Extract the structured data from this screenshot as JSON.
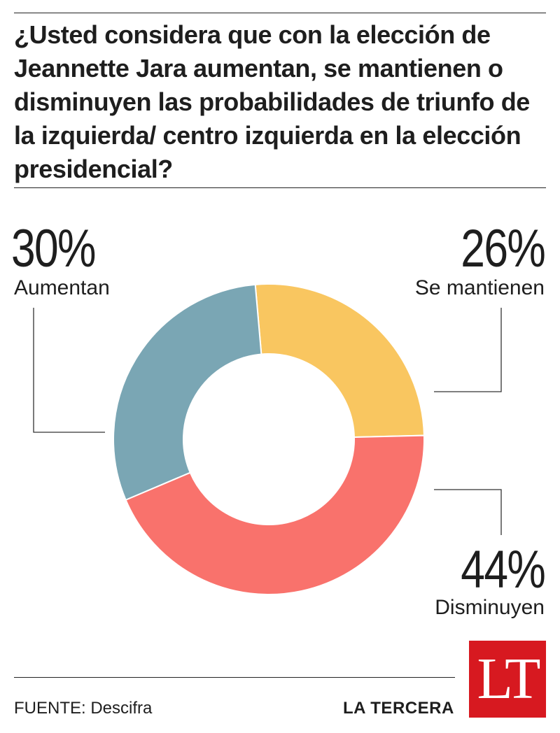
{
  "question": "¿Usted considera que con la elección de Jeannette Jara aumentan, se mantienen o disminuyen las probabilidades de triunfo de la izquierda/ centro  izquierda en la elección presidencial?",
  "chart_data": {
    "type": "pie",
    "donut": true,
    "title": "¿Usted considera que con la elección de Jeannette Jara aumentan, se mantienen o disminuyen las probabilidades de triunfo de la izquierda/ centro  izquierda en la elección presidencial?",
    "start_angle_deg": -5,
    "slices": [
      {
        "label": "Se mantienen",
        "value": 26,
        "display": "26%",
        "color": "#f9c660"
      },
      {
        "label": "Disminuyen",
        "value": 44,
        "display": "44%",
        "color": "#f9726c"
      },
      {
        "label": "Aumentan",
        "value": 30,
        "display": "30%",
        "color": "#7aa6b4"
      }
    ]
  },
  "footer": {
    "source": "FUENTE: Descifra",
    "brand": "LA TERCERA",
    "logo_text": "LT",
    "logo_color": "#d71920"
  }
}
